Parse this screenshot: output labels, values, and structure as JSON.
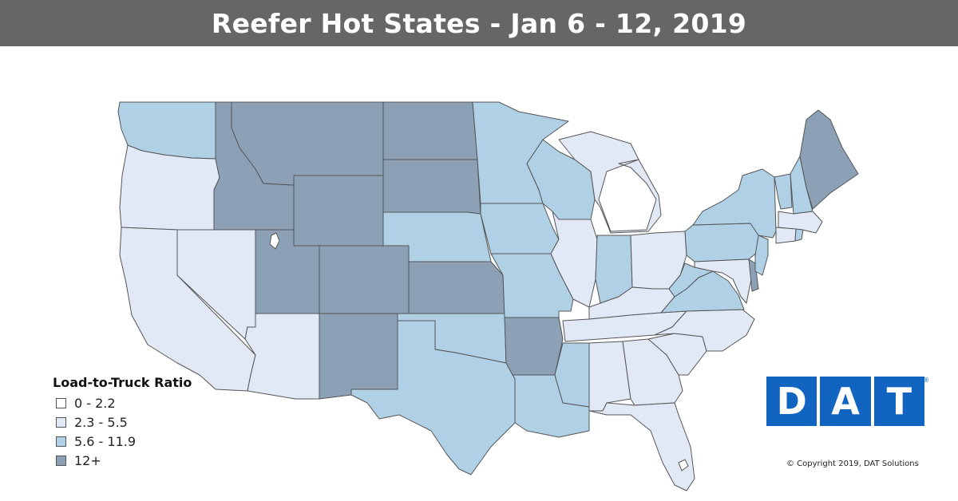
{
  "title": "Reefer Hot States - Jan 6 - 12, 2019",
  "legend": {
    "title": "Load-to-Truck Ratio",
    "items": [
      {
        "label": "0 - 2.2",
        "color": "#ffffff"
      },
      {
        "label": "2.3 - 5.5",
        "color": "#e2e9f6"
      },
      {
        "label": "5.6 - 11.9",
        "color": "#b0d0e6"
      },
      {
        "label": "12+",
        "color": "#8da1b6"
      }
    ]
  },
  "logo": {
    "letters": [
      "D",
      "A",
      "T"
    ],
    "registered": "®",
    "color": "#1165c1"
  },
  "copyright": "© Copyright 2019, DAT Solutions",
  "states": {
    "WA": 3,
    "OR": 2,
    "CA": 2,
    "NV": 2,
    "ID": 4,
    "MT": 4,
    "WY": 4,
    "UT": 4,
    "AZ": 2,
    "CO": 4,
    "NM": 4,
    "ND": 4,
    "SD": 4,
    "NE": 3,
    "KS": 4,
    "OK": 3,
    "TX": 3,
    "MN": 3,
    "IA": 3,
    "MO": 3,
    "AR": 4,
    "LA": 3,
    "WI": 3,
    "IL": 2,
    "MI": 2,
    "IN": 3,
    "OH": 2,
    "KY": 2,
    "TN": 2,
    "MS": 3,
    "AL": 2,
    "GA": 2,
    "FL": 2,
    "SC": 2,
    "NC": 2,
    "VA": 3,
    "WV": 3,
    "PA": 3,
    "NY": 3,
    "VT": 3,
    "NH": 3,
    "ME": 4,
    "MA": 2,
    "CT": 2,
    "RI": 3,
    "NJ": 3,
    "DE": 4,
    "MD": 2
  }
}
